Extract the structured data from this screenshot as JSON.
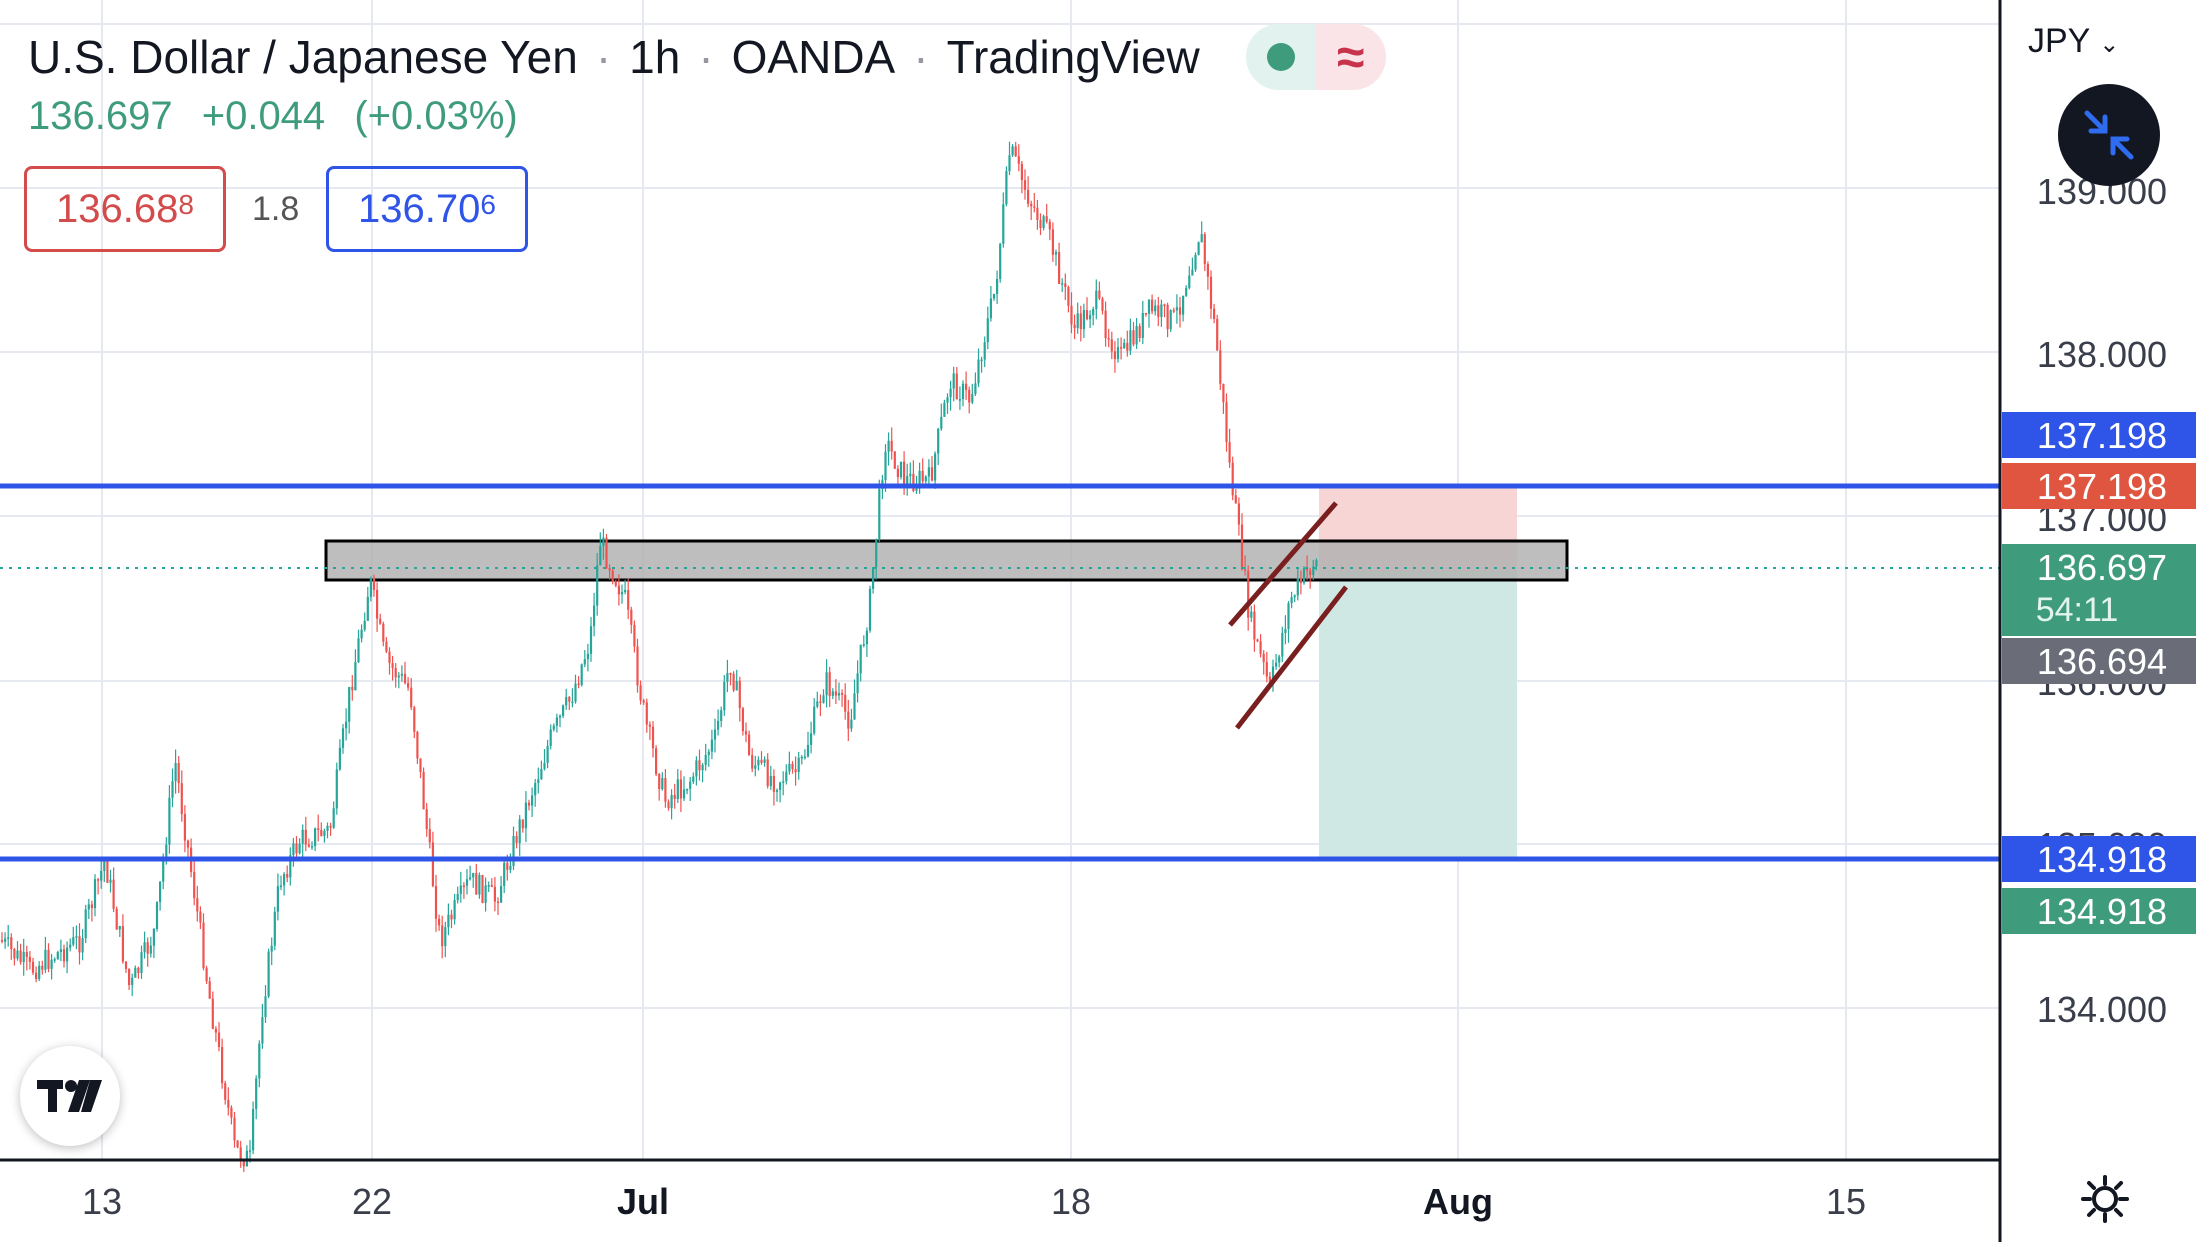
{
  "header": {
    "symbol": "U.S. Dollar / Japanese Yen",
    "interval": "1h",
    "broker": "OANDA",
    "source": "TradingView",
    "separator": "·",
    "price": "136.697",
    "change": "+0.044",
    "change_pct": "(+0.03%)"
  },
  "trade_panel": {
    "sell_price": "136.68",
    "sell_price_sup": "8",
    "spread": "1.8",
    "buy_price": "136.70",
    "buy_price_sup": "6"
  },
  "axis": {
    "currency": "JPY",
    "y_ticks": [
      "139.000",
      "138.000",
      "137.000",
      "136.000",
      "135.000",
      "134.000"
    ],
    "x_ticks": [
      "13",
      "22",
      "Jul",
      "18",
      "Aug",
      "15"
    ]
  },
  "price_labels": {
    "upper_line": "137.198",
    "stop_loss": "137.198",
    "last_price": "136.697",
    "countdown": "54:11",
    "crosshair": "136.694",
    "lower_line": "134.918",
    "take_profit": "134.918"
  },
  "colors": {
    "up": "#26a69a",
    "down": "#ef5350",
    "hline": "#2f54e8",
    "stop_zone": "#f5d0d0",
    "profit_zone": "#cde8e3",
    "channel": "#7a1f1f"
  },
  "icons": {
    "status": "green-dot-icon",
    "indicator": "approx-wave-icon",
    "minimize": "collapse-arrows-icon",
    "logo": "tradingview-logo-icon",
    "settings": "gear-icon",
    "currency_menu": "chevron-down-icon"
  }
}
